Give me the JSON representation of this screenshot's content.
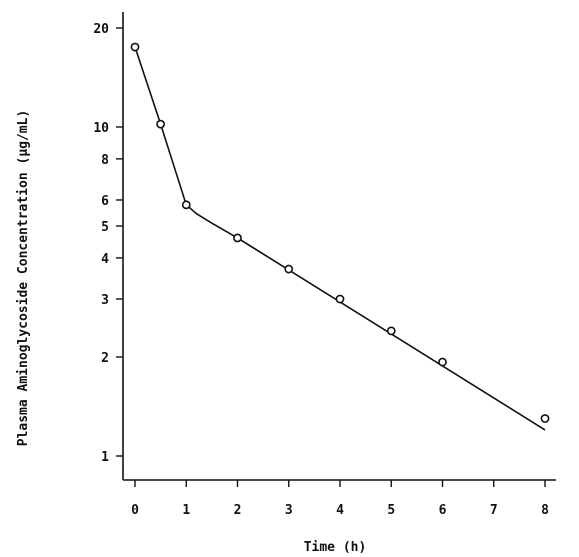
{
  "chart_data": {
    "type": "scatter",
    "xlabel": "Time (h)",
    "ylabel": "Plasma Aminoglycoside Concentration (μg/mL)",
    "yscale": "log",
    "xlim": [
      0,
      8
    ],
    "ylim": [
      0.8,
      22
    ],
    "x_ticks": [
      0,
      1,
      2,
      3,
      4,
      5,
      6,
      7,
      8
    ],
    "y_ticks": [
      1,
      2,
      3,
      4,
      5,
      6,
      8,
      10,
      20
    ],
    "grid": false,
    "series": [
      {
        "values": [
          {
            "x": 0,
            "y": 17.5
          },
          {
            "x": 0.5,
            "y": 10.2
          },
          {
            "x": 1,
            "y": 5.8
          },
          {
            "x": 2,
            "y": 4.6
          },
          {
            "x": 3,
            "y": 3.7
          },
          {
            "x": 4,
            "y": 3.0
          },
          {
            "x": 5,
            "y": 2.4
          },
          {
            "x": 6,
            "y": 1.93
          },
          {
            "x": 8,
            "y": 1.3
          }
        ]
      }
    ],
    "fit_curve": [
      {
        "x": 0,
        "y": 17.5
      },
      {
        "x": 0.5,
        "y": 10.2
      },
      {
        "x": 1,
        "y": 5.8
      },
      {
        "x": 1.2,
        "y": 5.45
      },
      {
        "x": 1.5,
        "y": 5.1
      },
      {
        "x": 2,
        "y": 4.6
      },
      {
        "x": 8,
        "y": 1.2
      }
    ]
  }
}
